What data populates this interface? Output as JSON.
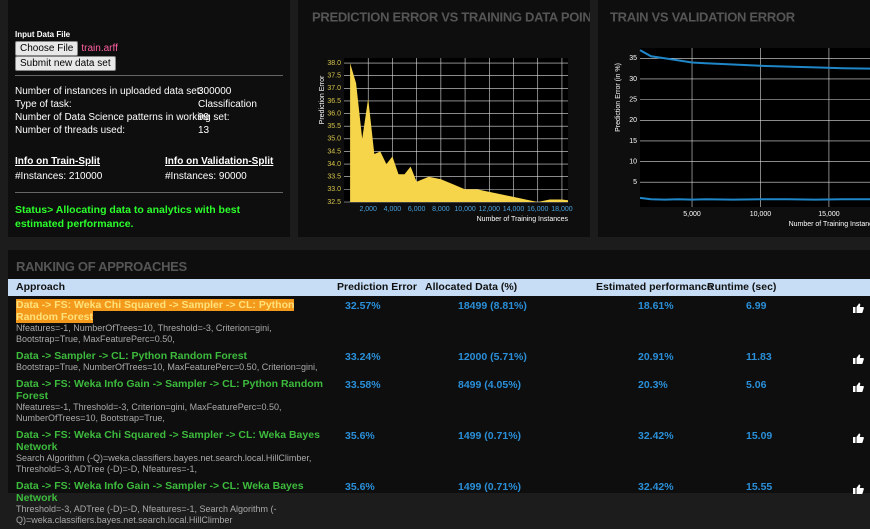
{
  "input_panel": {
    "label": "Input Data File",
    "choose_button": "Choose File",
    "file_name": "train.arff",
    "submit_button": "Submit new data set"
  },
  "stats": [
    {
      "label": "Number of instances in uploaded data set:",
      "value": 300000
    },
    {
      "label": "Type of task:",
      "value": "Classification"
    },
    {
      "label": "Number of Data Science patterns in working set:",
      "value": 99
    },
    {
      "label": "Number of threads used:",
      "value": 13
    }
  ],
  "splits": [
    {
      "link": "Info on Train-Split",
      "instances": "#Instances: 210000"
    },
    {
      "link": "Info on Validation-Split",
      "instances": "#Instances: 90000"
    }
  ],
  "status": "Status> Allocating data to analytics with best estimated performance.",
  "chart_data": [
    {
      "type": "area",
      "title": "PREDICTION ERROR VS TRAINING DATA POINTS",
      "y_label": "Prediction Error",
      "x_label": "Number of Training Instances",
      "x": [
        500,
        1000,
        1500,
        2000,
        2500,
        3000,
        3500,
        4000,
        4500,
        5000,
        5500,
        6000,
        7000,
        8000,
        9000,
        10000,
        11000,
        12000,
        13000,
        14000,
        15000,
        16000,
        17000,
        18000,
        18499
      ],
      "series": [
        {
          "color": "#f7d54a",
          "values": [
            38.0,
            37.2,
            35.0,
            36.6,
            34.4,
            34.5,
            34.0,
            34.3,
            33.6,
            33.6,
            33.9,
            33.3,
            33.5,
            33.4,
            33.2,
            33.0,
            33.0,
            32.9,
            32.8,
            32.7,
            32.6,
            32.5,
            32.6,
            32.6,
            32.57
          ]
        }
      ],
      "xlim": [
        0,
        18500
      ],
      "ylim": [
        32.5,
        38.2
      ],
      "xticks": [
        {
          "value": 2000,
          "label": "2,000"
        },
        {
          "value": 4000,
          "label": "4,000"
        },
        {
          "value": 6000,
          "label": "6,000"
        },
        {
          "value": 8000,
          "label": "8,000"
        },
        {
          "value": 10000,
          "label": "10,000"
        },
        {
          "value": 12000,
          "label": "12,000"
        },
        {
          "value": 14000,
          "label": "14,000"
        },
        {
          "value": 16000,
          "label": "16,000"
        },
        {
          "value": 18000,
          "label": "18,000"
        }
      ],
      "yticks": [
        32.5,
        {
          "value": 33,
          "label": "33.0"
        },
        33.5,
        {
          "value": 34,
          "label": "34.0"
        },
        34.5,
        {
          "value": 35,
          "label": "35.0"
        },
        35.5,
        {
          "value": 36,
          "label": "36.0"
        },
        36.5,
        {
          "value": 37,
          "label": "37.0"
        },
        37.5,
        {
          "value": 38,
          "label": "38.0"
        }
      ],
      "grid": true
    },
    {
      "type": "line",
      "title": "TRAIN VS VALIDATION ERROR",
      "y_label": "Prediction Error (in %)",
      "x_label": "Number of Training Instances",
      "x": [
        1200,
        2000,
        3000,
        4000,
        5000,
        6000,
        8000,
        10000,
        12000,
        14000,
        16000,
        18000
      ],
      "series": [
        {
          "color": "#1f86c8",
          "values": [
            37.0,
            35.5,
            35.0,
            34.5,
            34.0,
            33.8,
            33.5,
            33.2,
            33.0,
            32.8,
            32.6,
            32.5
          ]
        },
        {
          "color": "#1f86c8",
          "values": [
            1.2,
            0.9,
            0.8,
            0.9,
            0.8,
            0.9,
            0.8,
            0.9,
            0.9,
            0.8,
            0.9,
            0.9
          ]
        }
      ],
      "xlim": [
        1200,
        18000
      ],
      "ylim": [
        -1,
        37.5
      ],
      "xticks": [
        {
          "value": 5000,
          "label": "5,000"
        },
        {
          "value": 10000,
          "label": "10,000"
        },
        {
          "value": 15000,
          "label": "15,000"
        }
      ],
      "yticks": [
        5,
        10,
        15,
        20,
        25,
        30,
        35
      ],
      "grid": true
    }
  ],
  "ranking": {
    "title": "RANKING OF APPROACHES",
    "columns": [
      "Approach",
      "Prediction Error",
      "Allocated Data (%)",
      "Estimated performance",
      "Runtime (sec)"
    ],
    "rows": [
      {
        "approach": "Data -> FS: Weka Chi Squared -> Sampler -> CL: Python Random Forest",
        "params": "Nfeatures=-1, NumberOfTrees=10, Threshold=-3, Criterion=gini, Bootstrap=True, MaxFeaturePerc=0.50,",
        "error": "32.57%",
        "data": "18499 (8.81%)",
        "performance": "18.61%",
        "runtime": 6.99
      },
      {
        "approach": "Data -> Sampler -> CL: Python Random Forest",
        "params": "Bootstrap=True, NumberOfTrees=10, MaxFeaturePerc=0.50, Criterion=gini,",
        "error": "33.24%",
        "data": "12000 (5.71%)",
        "performance": "20.91%",
        "runtime": 11.83
      },
      {
        "approach": "Data -> FS: Weka Info Gain -> Sampler -> CL: Python Random Forest",
        "params": "Nfeatures=-1, Threshold=-3, Criterion=gini, MaxFeaturePerc=0.50, NumberOfTrees=10, Bootstrap=True,",
        "error": "33.58%",
        "data": "8499 (4.05%)",
        "performance": "20.3%",
        "runtime": 5.06
      },
      {
        "approach": "Data -> FS: Weka Chi Squared -> Sampler -> CL: Weka Bayes Network",
        "params": "Search Algorithm (-Q)=weka.classifiers.bayes.net.search.local.HillClimber, Threshold=-3, ADTree (-D)=-D, Nfeatures=-1,",
        "error": "35.6%",
        "data": "1499 (0.71%)",
        "performance": "32.42%",
        "runtime": 15.09
      },
      {
        "approach": "Data -> FS: Weka Info Gain -> Sampler -> CL: Weka Bayes Network",
        "params": "Threshold=-3, ADTree (-D)=-D, Nfeatures=-1, Search Algorithm (-Q)=weka.classifiers.bayes.net.search.local.HillClimber",
        "error": "35.6%",
        "data": "1499 (0.71%)",
        "performance": "32.42%",
        "runtime": 15.55
      }
    ]
  }
}
